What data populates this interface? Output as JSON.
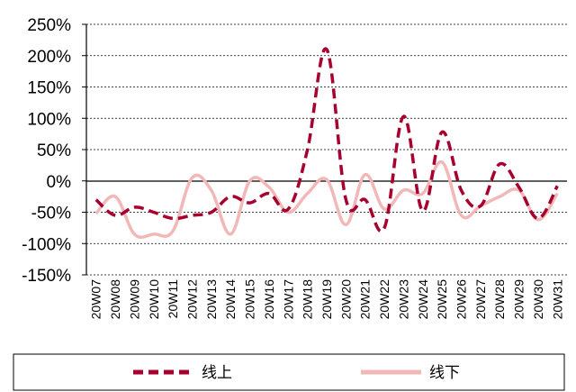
{
  "chart_data": {
    "type": "line",
    "categories": [
      "20W07",
      "20W08",
      "20W09",
      "20W10",
      "20W11",
      "20W12",
      "20W13",
      "20W14",
      "20W15",
      "20W16",
      "20W17",
      "20W18",
      "20W19",
      "20W20",
      "20W21",
      "20W22",
      "20W23",
      "20W24",
      "20W25",
      "20W26",
      "20W27",
      "20W28",
      "20W29",
      "20W30",
      "20W31"
    ],
    "ylim": [
      -150,
      250
    ],
    "yticks": [
      250,
      200,
      150,
      100,
      50,
      0,
      -50,
      -100,
      -150
    ],
    "ytick_labels": [
      "250%",
      "200%",
      "150%",
      "100%",
      "50%",
      "0%",
      "-50%",
      "-100%",
      "-150%"
    ],
    "grid": "horizontal dashed",
    "legend_position": "bottom",
    "series": [
      {
        "name": "线上",
        "style": "dashed",
        "color": "#a8002e",
        "values": [
          -30,
          -55,
          -42,
          -50,
          -60,
          -55,
          -50,
          -25,
          -35,
          -20,
          -45,
          50,
          210,
          -30,
          -30,
          -75,
          103,
          -48,
          78,
          -15,
          -40,
          27,
          -10,
          -60,
          -8
        ]
      },
      {
        "name": "线下",
        "style": "solid",
        "color": "#f2b8b8",
        "values": [
          -52,
          -25,
          -85,
          -85,
          -80,
          5,
          -15,
          -85,
          0,
          -10,
          -50,
          -20,
          2,
          -70,
          10,
          -45,
          -15,
          -20,
          30,
          -55,
          -40,
          -25,
          -15,
          -62,
          -20
        ]
      }
    ]
  }
}
